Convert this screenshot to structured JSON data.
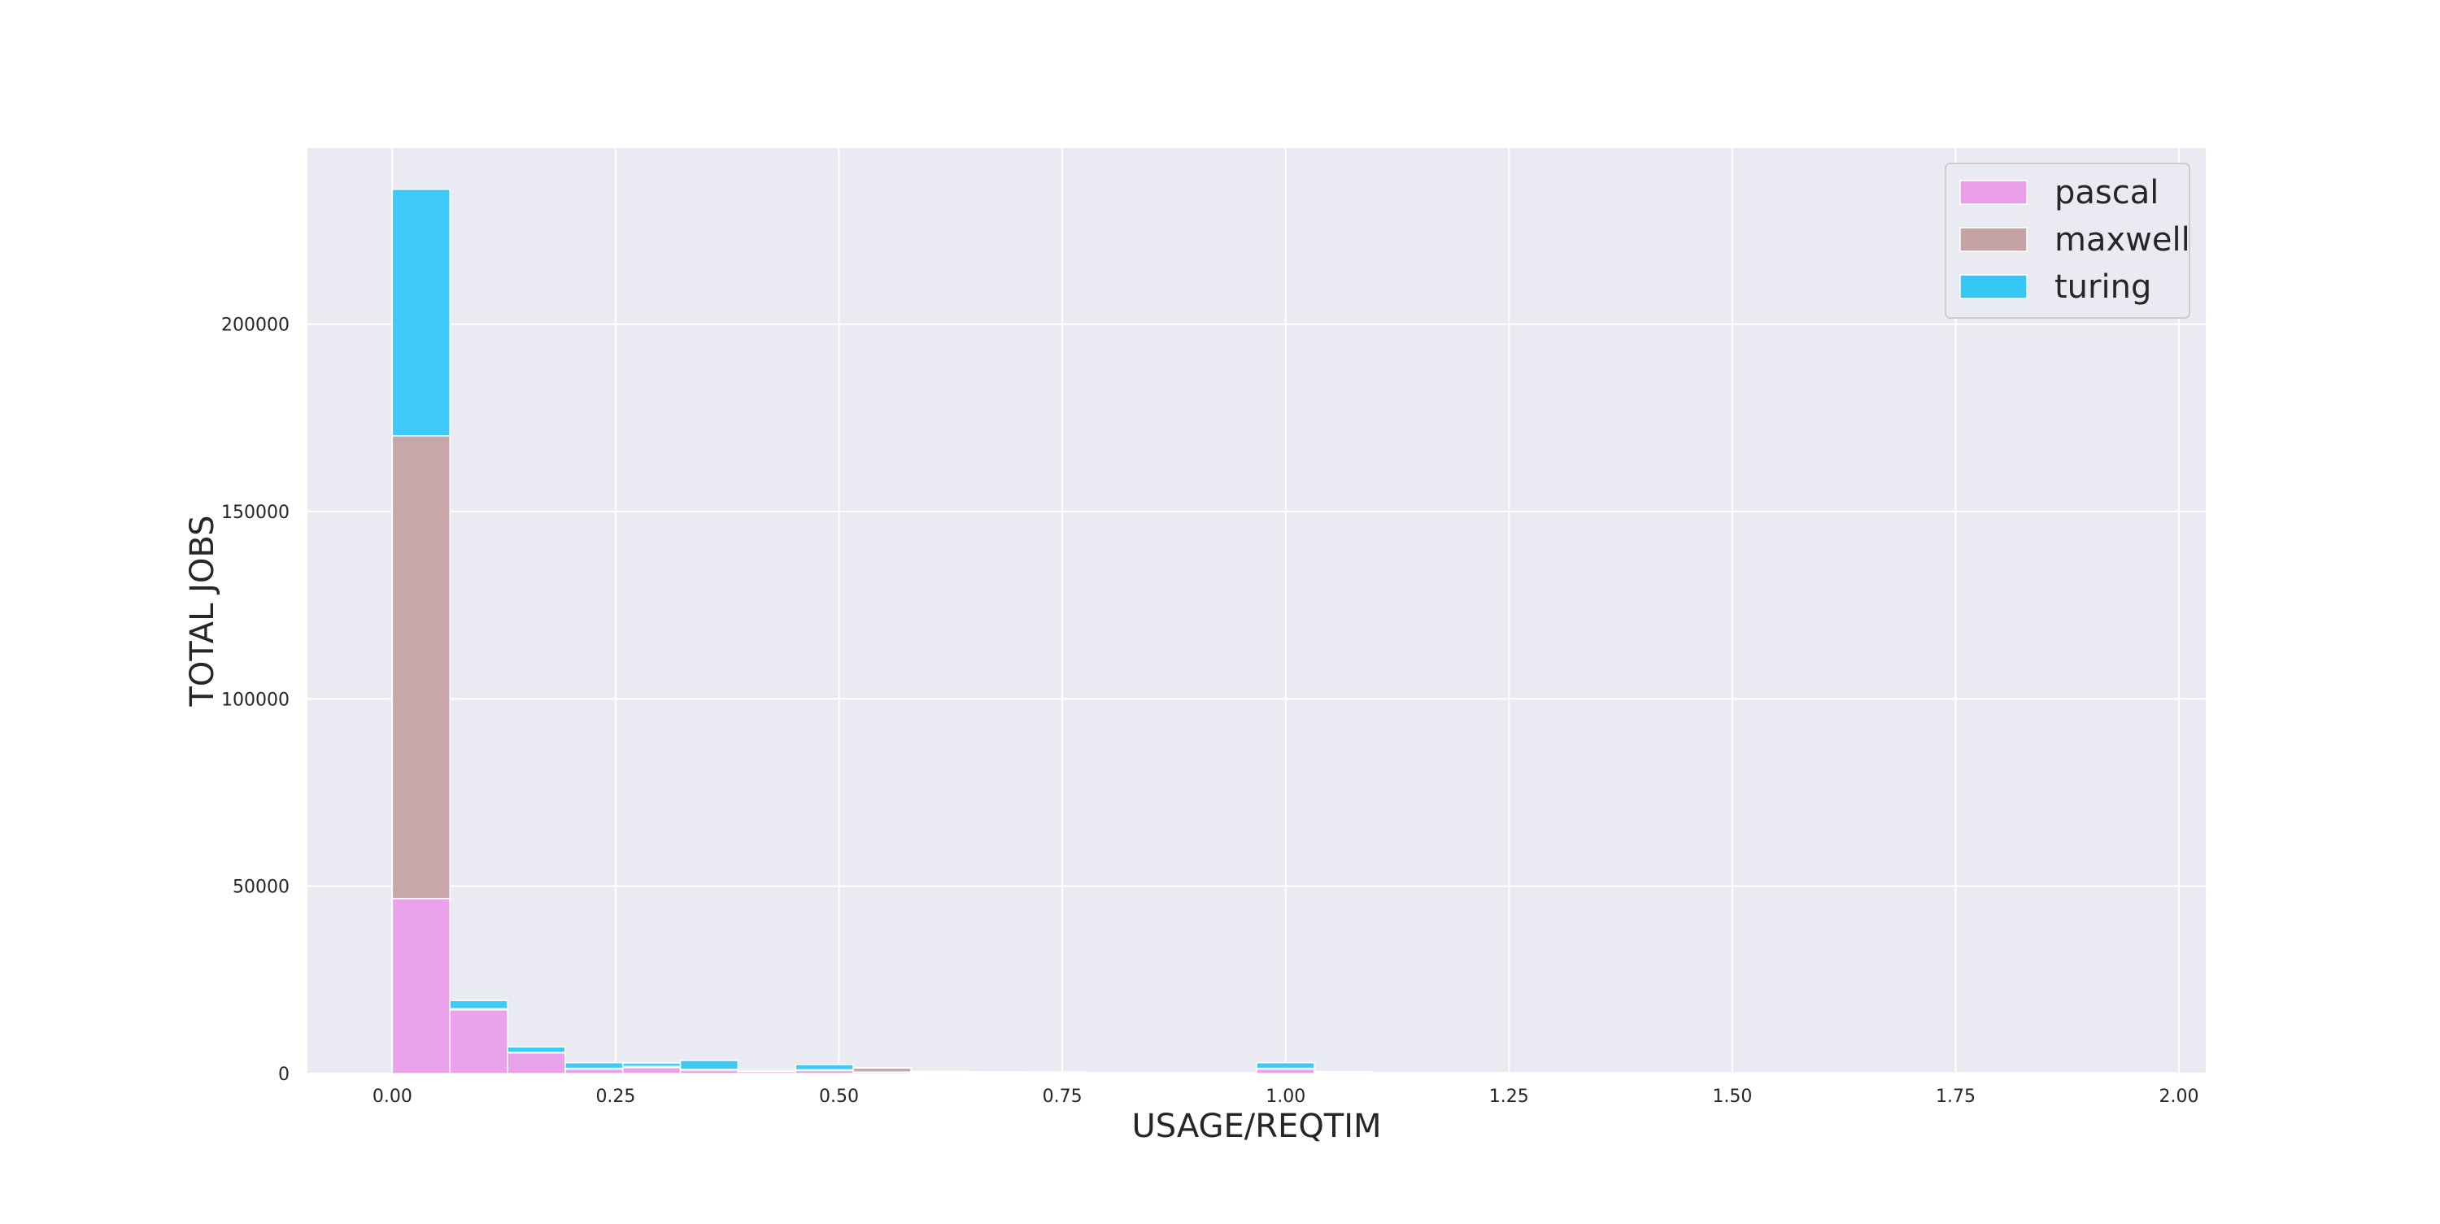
{
  "chart_data": {
    "type": "bar",
    "stacked": true,
    "xlabel": "USAGE/REQTIM",
    "ylabel": "TOTAL JOBS",
    "xlim": [
      -0.095,
      2.03
    ],
    "ylim": [
      0,
      247000
    ],
    "x_ticks": [
      0.0,
      0.25,
      0.5,
      0.75,
      1.0,
      1.25,
      1.5,
      1.75,
      2.0
    ],
    "x_tick_labels": [
      "0.00",
      "0.25",
      "0.50",
      "0.75",
      "1.00",
      "1.25",
      "1.50",
      "1.75",
      "2.00"
    ],
    "y_ticks": [
      0,
      50000,
      100000,
      150000,
      200000
    ],
    "y_tick_labels": [
      "0",
      "50000",
      "100000",
      "150000",
      "200000"
    ],
    "bin_width": 0.0645,
    "bin_starts": [
      0.0,
      0.0645,
      0.129,
      0.1935,
      0.258,
      0.3225,
      0.387,
      0.4515,
      0.516,
      0.5805,
      0.645,
      0.7095,
      0.774,
      0.8385,
      0.903,
      0.9675,
      1.032,
      1.0965,
      1.161,
      1.2255,
      1.29,
      1.3545,
      1.419,
      1.4835,
      1.548,
      1.6125,
      1.677,
      1.7415,
      1.806,
      1.8705,
      1.935
    ],
    "series": [
      {
        "name": "pascal",
        "color": "#ea9eea",
        "values": [
          46700,
          17000,
          5500,
          1200,
          1600,
          900,
          500,
          800,
          400,
          300,
          200,
          200,
          100,
          100,
          100,
          1200,
          300,
          100,
          100,
          100,
          100,
          50,
          50,
          50,
          50,
          50,
          50,
          50,
          50,
          50,
          50
        ]
      },
      {
        "name": "maxwell",
        "color": "#c5a3a3",
        "values": [
          123500,
          300,
          200,
          200,
          300,
          200,
          200,
          200,
          1100,
          200,
          100,
          100,
          50,
          50,
          50,
          200,
          50,
          50,
          50,
          50,
          50,
          50,
          50,
          50,
          50,
          50,
          50,
          50,
          50,
          50,
          50
        ]
      },
      {
        "name": "turing",
        "color": "#35c8f5",
        "values": [
          65800,
          2200,
          1400,
          1500,
          900,
          2400,
          400,
          1400,
          100,
          100,
          200,
          100,
          100,
          100,
          100,
          1500,
          200,
          100,
          100,
          100,
          100,
          50,
          50,
          50,
          50,
          50,
          50,
          50,
          50,
          50,
          50
        ]
      }
    ],
    "grid": true,
    "legend_position": "top-right"
  }
}
